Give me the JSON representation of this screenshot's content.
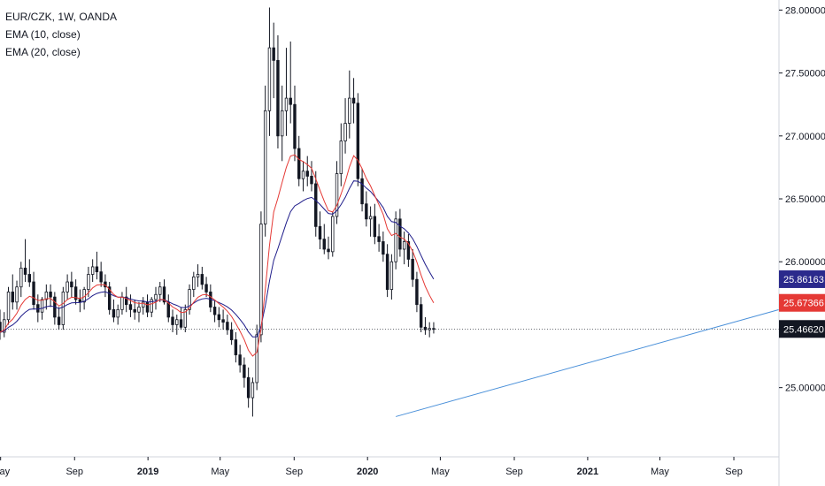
{
  "legend": {
    "symbol": "EUR/CZK, 1W, OANDA",
    "ema10": "EMA (10, close)",
    "ema20": "EMA (20, close)"
  },
  "colors": {
    "up": "#ffffff",
    "down": "#131722",
    "ema10": "#e53935",
    "ema20": "#1e1c8a",
    "trendline": "#4a90d9",
    "price_tag": "#131722",
    "ema10_tag": "#e53935",
    "ema20_tag": "#2b2a8c"
  },
  "chart_data": {
    "type": "candlestick",
    "symbol": "EUR/CZK",
    "interval": "1W",
    "source": "OANDA",
    "y_axis": {
      "ticks": [
        "28.00000",
        "27.50000",
        "27.00000",
        "26.50000",
        "26.00000",
        "25.50000",
        "25.00000"
      ],
      "range": [
        24.45,
        28.08
      ]
    },
    "x_axis": {
      "ticks": [
        {
          "label": "May",
          "date": "2018-05-01",
          "bold": false
        },
        {
          "label": "Sep",
          "date": "2018-09-01",
          "bold": false
        },
        {
          "label": "2019",
          "date": "2019-01-01",
          "bold": true
        },
        {
          "label": "May",
          "date": "2019-05-01",
          "bold": false
        },
        {
          "label": "Sep",
          "date": "2019-09-01",
          "bold": false
        },
        {
          "label": "2020",
          "date": "2020-01-01",
          "bold": true
        },
        {
          "label": "May",
          "date": "2020-05-01",
          "bold": false
        },
        {
          "label": "Sep",
          "date": "2020-09-01",
          "bold": false
        },
        {
          "label": "2021",
          "date": "2021-01-01",
          "bold": true
        },
        {
          "label": "May",
          "date": "2021-05-01",
          "bold": false
        },
        {
          "label": "Sep",
          "date": "2021-09-01",
          "bold": false
        }
      ],
      "range": [
        "2018-04-30",
        "2021-11-15"
      ]
    },
    "last_price": {
      "value": 25.4662,
      "label": "25.46620"
    },
    "ema10_last": {
      "value": 25.67366,
      "label": "25.67366"
    },
    "ema20_last": {
      "value": 25.86163,
      "label": "25.86163"
    },
    "trendline": {
      "from": {
        "date": "2020-02-17",
        "value": 24.77
      },
      "to": {
        "date": "2021-11-15",
        "value": 25.62
      }
    },
    "series": [
      {
        "name": "EUR/CZK",
        "ohlc_weekly_from": "2018-04-30",
        "values": [
          [
            25.52,
            25.62,
            25.38,
            25.44
          ],
          [
            25.44,
            25.6,
            25.4,
            25.54
          ],
          [
            25.54,
            25.8,
            25.5,
            25.76
          ],
          [
            25.76,
            25.9,
            25.62,
            25.68
          ],
          [
            25.68,
            25.85,
            25.62,
            25.8
          ],
          [
            25.8,
            26.0,
            25.72,
            25.95
          ],
          [
            25.95,
            26.18,
            25.84,
            25.9
          ],
          [
            25.9,
            26.02,
            25.8,
            25.84
          ],
          [
            25.84,
            25.92,
            25.62,
            25.66
          ],
          [
            25.66,
            25.74,
            25.52,
            25.6
          ],
          [
            25.6,
            25.72,
            25.54,
            25.7
          ],
          [
            25.7,
            25.82,
            25.62,
            25.76
          ],
          [
            25.76,
            25.82,
            25.64,
            25.72
          ],
          [
            25.72,
            25.76,
            25.5,
            25.56
          ],
          [
            25.56,
            25.64,
            25.46,
            25.5
          ],
          [
            25.5,
            25.8,
            25.46,
            25.76
          ],
          [
            25.76,
            25.9,
            25.7,
            25.84
          ],
          [
            25.84,
            25.92,
            25.72,
            25.8
          ],
          [
            25.8,
            25.86,
            25.66,
            25.7
          ],
          [
            25.7,
            25.78,
            25.6,
            25.68
          ],
          [
            25.68,
            25.8,
            25.62,
            25.78
          ],
          [
            25.78,
            25.96,
            25.72,
            25.9
          ],
          [
            25.9,
            26.02,
            25.84,
            25.96
          ],
          [
            25.96,
            26.08,
            25.86,
            25.92
          ],
          [
            25.92,
            26.0,
            25.8,
            25.84
          ],
          [
            25.84,
            25.9,
            25.72,
            25.8
          ],
          [
            25.8,
            25.84,
            25.58,
            25.62
          ],
          [
            25.62,
            25.7,
            25.52,
            25.56
          ],
          [
            25.56,
            25.66,
            25.5,
            25.62
          ],
          [
            25.62,
            25.76,
            25.58,
            25.72
          ],
          [
            25.72,
            25.8,
            25.6,
            25.66
          ],
          [
            25.66,
            25.74,
            25.56,
            25.62
          ],
          [
            25.62,
            25.7,
            25.54,
            25.6
          ],
          [
            25.6,
            25.68,
            25.52,
            25.64
          ],
          [
            25.64,
            25.72,
            25.58,
            25.68
          ],
          [
            25.68,
            25.74,
            25.56,
            25.6
          ],
          [
            25.6,
            25.72,
            25.56,
            25.7
          ],
          [
            25.7,
            25.8,
            25.62,
            25.74
          ],
          [
            25.74,
            25.84,
            25.68,
            25.8
          ],
          [
            25.8,
            25.86,
            25.66,
            25.68
          ],
          [
            25.68,
            25.74,
            25.52,
            25.56
          ],
          [
            25.56,
            25.62,
            25.44,
            25.5
          ],
          [
            25.5,
            25.58,
            25.42,
            25.54
          ],
          [
            25.54,
            25.64,
            25.46,
            25.48
          ],
          [
            25.48,
            25.66,
            25.44,
            25.62
          ],
          [
            25.62,
            25.82,
            25.58,
            25.78
          ],
          [
            25.78,
            25.92,
            25.72,
            25.88
          ],
          [
            25.88,
            25.98,
            25.8,
            25.9
          ],
          [
            25.9,
            25.96,
            25.78,
            25.82
          ],
          [
            25.82,
            25.88,
            25.72,
            25.76
          ],
          [
            25.76,
            25.82,
            25.6,
            25.64
          ],
          [
            25.64,
            25.7,
            25.52,
            25.58
          ],
          [
            25.58,
            25.64,
            25.48,
            25.54
          ],
          [
            25.54,
            25.62,
            25.46,
            25.52
          ],
          [
            25.52,
            25.58,
            25.42,
            25.46
          ],
          [
            25.46,
            25.52,
            25.34,
            25.38
          ],
          [
            25.38,
            25.44,
            25.2,
            25.26
          ],
          [
            25.26,
            25.34,
            25.12,
            25.18
          ],
          [
            25.18,
            25.24,
            25.0,
            25.08
          ],
          [
            25.08,
            25.16,
            24.84,
            24.92
          ],
          [
            24.92,
            25.08,
            24.77,
            25.04
          ],
          [
            25.04,
            25.5,
            24.98,
            25.42
          ],
          [
            25.42,
            26.4,
            25.36,
            26.3
          ],
          [
            26.3,
            27.4,
            26.2,
            27.2
          ],
          [
            27.2,
            28.02,
            27.0,
            27.7
          ],
          [
            27.7,
            27.9,
            27.3,
            27.6
          ],
          [
            27.6,
            27.8,
            26.9,
            27.0
          ],
          [
            27.0,
            27.4,
            26.8,
            27.2
          ],
          [
            27.2,
            27.7,
            27.0,
            27.3
          ],
          [
            27.3,
            27.75,
            27.1,
            27.25
          ],
          [
            27.25,
            27.4,
            26.8,
            26.9
          ],
          [
            26.9,
            27.0,
            26.6,
            26.66
          ],
          [
            26.66,
            26.8,
            26.56,
            26.72
          ],
          [
            26.72,
            26.84,
            26.6,
            26.68
          ],
          [
            26.68,
            26.8,
            26.56,
            26.62
          ],
          [
            26.62,
            26.72,
            26.2,
            26.28
          ],
          [
            26.28,
            26.4,
            26.1,
            26.18
          ],
          [
            26.18,
            26.3,
            26.06,
            26.1
          ],
          [
            26.1,
            26.2,
            26.02,
            26.08
          ],
          [
            26.08,
            26.4,
            26.04,
            26.36
          ],
          [
            26.36,
            26.8,
            26.3,
            26.7
          ],
          [
            26.7,
            27.1,
            26.6,
            26.96
          ],
          [
            26.96,
            27.3,
            26.86,
            27.1
          ],
          [
            27.1,
            27.52,
            26.98,
            27.3
          ],
          [
            27.3,
            27.46,
            27.1,
            27.26
          ],
          [
            27.26,
            27.34,
            26.6,
            26.66
          ],
          [
            26.66,
            26.74,
            26.4,
            26.46
          ],
          [
            26.46,
            26.56,
            26.28,
            26.34
          ],
          [
            26.34,
            26.44,
            26.2,
            26.36
          ],
          [
            26.36,
            26.46,
            26.14,
            26.2
          ],
          [
            26.2,
            26.3,
            26.08,
            26.16
          ],
          [
            26.16,
            26.24,
            26.0,
            26.06
          ],
          [
            26.06,
            26.14,
            25.72,
            25.78
          ],
          [
            25.78,
            26.06,
            25.7,
            26.0
          ],
          [
            26.0,
            26.4,
            25.94,
            26.34
          ],
          [
            26.34,
            26.42,
            26.04,
            26.1
          ],
          [
            26.1,
            26.24,
            25.98,
            26.16
          ],
          [
            26.16,
            26.22,
            25.96,
            26.02
          ],
          [
            26.02,
            26.1,
            25.8,
            25.86
          ],
          [
            25.86,
            25.92,
            25.6,
            25.66
          ],
          [
            25.66,
            25.72,
            25.44,
            25.48
          ],
          [
            25.48,
            25.56,
            25.42,
            25.46
          ],
          [
            25.46,
            25.52,
            25.4,
            25.47
          ],
          [
            25.47,
            25.52,
            25.43,
            25.4662
          ]
        ]
      },
      {
        "name": "EMA (10, close)",
        "last": 25.67366
      },
      {
        "name": "EMA (20, close)",
        "last": 25.86163
      }
    ]
  }
}
